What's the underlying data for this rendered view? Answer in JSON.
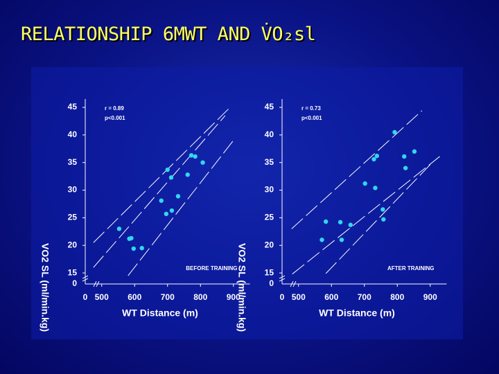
{
  "slide_title": "RELATIONSHIP 6MWT AND V̇O₂sl",
  "chart_data": [
    {
      "type": "scatter",
      "x_label": "WT Distance (m)",
      "y_label": "VO2 SL (ml/min.kg)",
      "annotations": [
        "r = 0.89",
        "p<0.001",
        "BEFORE TRAINING"
      ],
      "color": "#33d6f2",
      "x": [
        553,
        584,
        590,
        597,
        622,
        681,
        696,
        700,
        711,
        713,
        732,
        761,
        772,
        784,
        807
      ],
      "values": [
        23,
        21.2,
        21.3,
        19.4,
        19.5,
        28.1,
        25.7,
        33.7,
        32.3,
        26.3,
        28.9,
        32.8,
        36.3,
        36.1,
        35
      ],
      "fit_lines": [
        {
          "x": [
            475,
            875
          ],
          "y": [
            16,
            43.5
          ]
        },
        {
          "x": [
            475,
            890
          ],
          "y": [
            20.5,
            45
          ]
        },
        {
          "x": [
            580,
            900
          ],
          "y": [
            14.5,
            39
          ]
        }
      ],
      "xlim": [
        450,
        950
      ],
      "xticks": [
        500,
        600,
        700,
        800,
        900
      ],
      "x_origin": 0,
      "ylim": [
        13,
        46.5
      ],
      "yticks": [
        15,
        20,
        25,
        30,
        35,
        40,
        45
      ],
      "y_origin": 0
    },
    {
      "type": "scatter",
      "x_label": "WT Distance (m)",
      "y_label": "VO2 SL (ml/min.kg)",
      "annotations": [
        "r = 0.73",
        "p<0.001",
        "AFTER TRAINING"
      ],
      "color": "#33d6f2",
      "x": [
        571,
        583,
        627,
        631,
        658,
        702,
        729,
        733,
        738,
        756,
        758,
        792,
        821,
        825,
        852
      ],
      "values": [
        21,
        24.3,
        24.2,
        21,
        23.7,
        31.2,
        35.6,
        30.4,
        36.2,
        26.5,
        24.7,
        40.5,
        36.1,
        34,
        37
      ],
      "fit_lines": [
        {
          "x": [
            481,
            929
          ],
          "y": [
            14.8,
            36.1
          ]
        },
        {
          "x": [
            479,
            875
          ],
          "y": [
            23,
            44.4
          ]
        },
        {
          "x": [
            583,
            906
          ],
          "y": [
            14.9,
            35
          ]
        }
      ],
      "xlim": [
        450,
        950
      ],
      "xticks": [
        500,
        600,
        700,
        800,
        900
      ],
      "x_origin": 0,
      "ylim": [
        13,
        46.5
      ],
      "yticks": [
        15,
        20,
        25,
        30,
        35,
        40,
        45
      ],
      "y_origin": 0
    }
  ]
}
